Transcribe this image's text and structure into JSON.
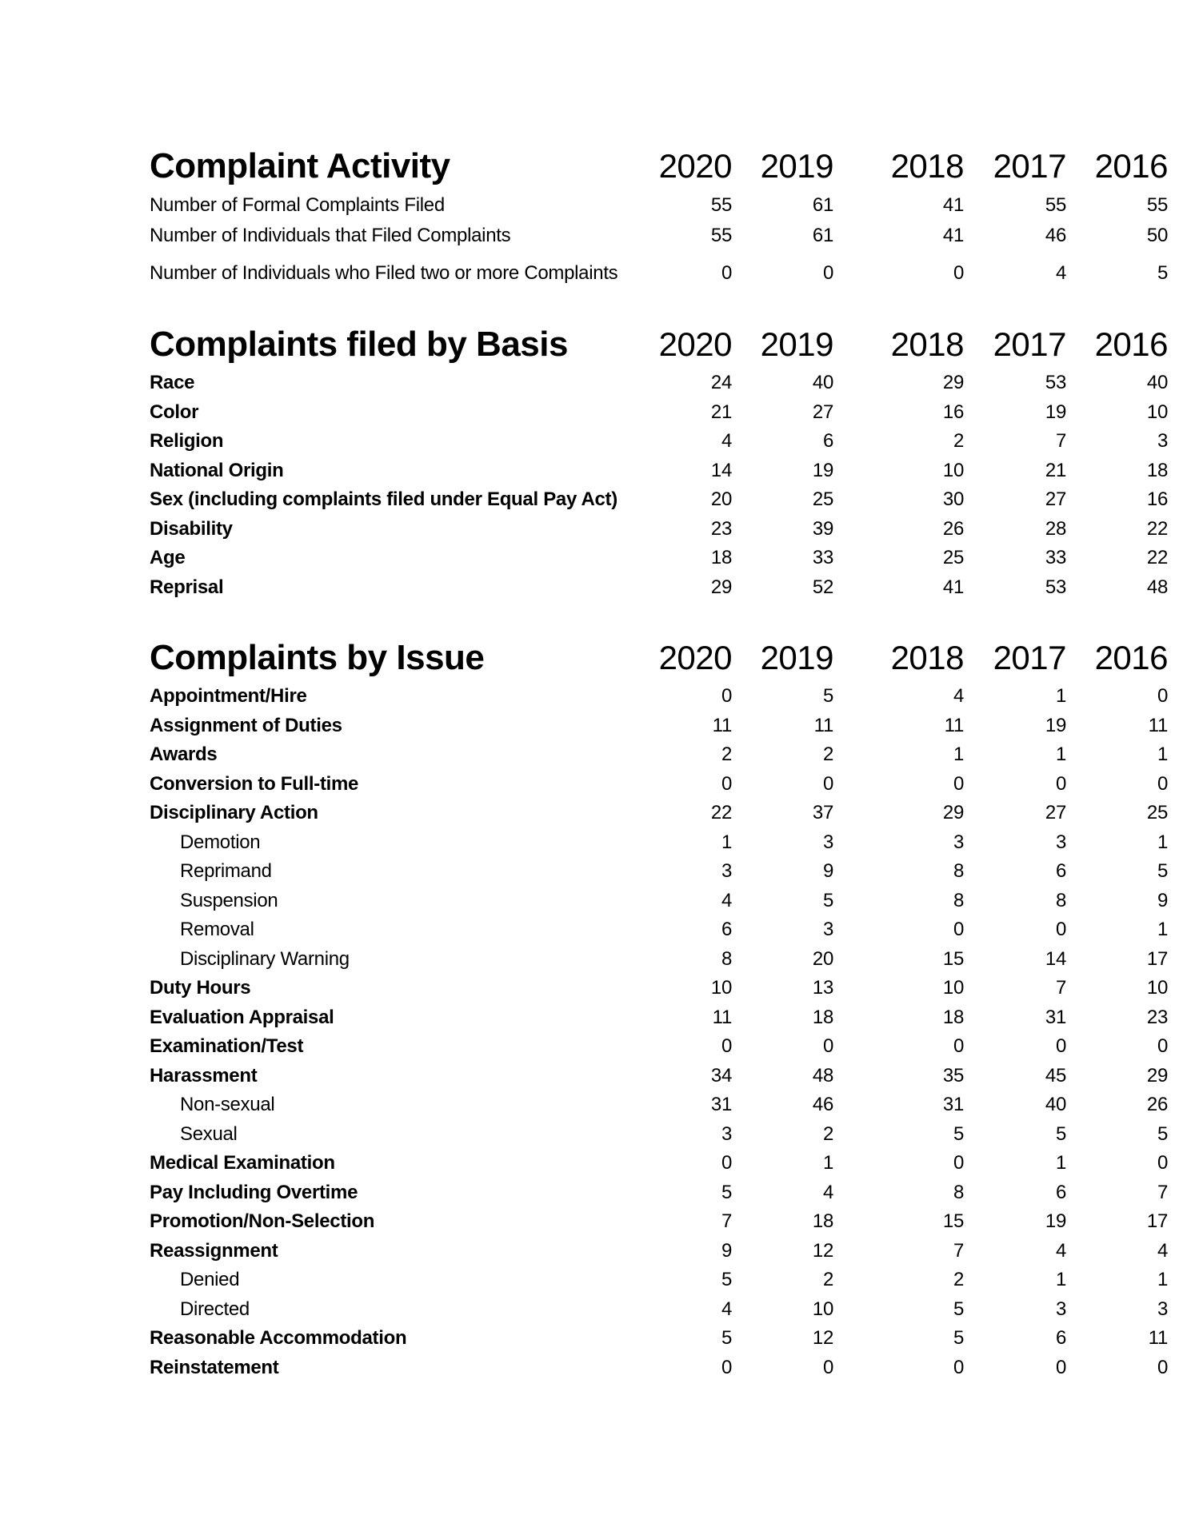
{
  "page": {
    "background_color": "#ffffff",
    "text_color": "#000000"
  },
  "years": [
    "2020",
    "2019",
    "2018",
    "2017",
    "2016"
  ],
  "sections": [
    {
      "id": "complaint-activity",
      "title": "Complaint Activity",
      "rows": [
        {
          "label": "Number of Formal Complaints Filed",
          "bold": false,
          "indent": false,
          "values": [
            55,
            61,
            41,
            55,
            55
          ]
        },
        {
          "label": "Number of Individuals that Filed Complaints",
          "bold": false,
          "indent": false,
          "values": [
            55,
            61,
            41,
            46,
            50
          ]
        },
        {
          "label": "Number of Individuals who Filed two or more Complaints",
          "bold": false,
          "indent": false,
          "spacer_before": true,
          "values": [
            0,
            0,
            0,
            4,
            5
          ]
        }
      ]
    },
    {
      "id": "complaints-filed-by-basis",
      "title": "Complaints filed by Basis",
      "rows": [
        {
          "label": "Race",
          "bold": true,
          "indent": false,
          "values": [
            24,
            40,
            29,
            53,
            40
          ]
        },
        {
          "label": "Color",
          "bold": true,
          "indent": false,
          "values": [
            21,
            27,
            16,
            19,
            10
          ]
        },
        {
          "label": "Religion",
          "bold": true,
          "indent": false,
          "values": [
            4,
            6,
            2,
            7,
            3
          ]
        },
        {
          "label": "National Origin",
          "bold": true,
          "indent": false,
          "values": [
            14,
            19,
            10,
            21,
            18
          ]
        },
        {
          "label": "Sex (including complaints filed under Equal Pay Act)",
          "bold": true,
          "indent": false,
          "values": [
            20,
            25,
            30,
            27,
            16
          ]
        },
        {
          "label": "Disability",
          "bold": true,
          "indent": false,
          "values": [
            23,
            39,
            26,
            28,
            22
          ]
        },
        {
          "label": "Age",
          "bold": true,
          "indent": false,
          "values": [
            18,
            33,
            25,
            33,
            22
          ]
        },
        {
          "label": "Reprisal",
          "bold": true,
          "indent": false,
          "values": [
            29,
            52,
            41,
            53,
            48
          ]
        }
      ]
    },
    {
      "id": "complaints-by-issue",
      "title": "Complaints by Issue",
      "rows": [
        {
          "label": "Appointment/Hire",
          "bold": true,
          "indent": false,
          "values": [
            0,
            5,
            4,
            1,
            0
          ]
        },
        {
          "label": "Assignment of Duties",
          "bold": true,
          "indent": false,
          "values": [
            11,
            11,
            11,
            19,
            11
          ]
        },
        {
          "label": "Awards",
          "bold": true,
          "indent": false,
          "values": [
            2,
            2,
            1,
            1,
            1
          ]
        },
        {
          "label": "Conversion to Full-time",
          "bold": true,
          "indent": false,
          "values": [
            0,
            0,
            0,
            0,
            0
          ]
        },
        {
          "label": "Disciplinary Action",
          "bold": true,
          "indent": false,
          "values": [
            22,
            37,
            29,
            27,
            25
          ]
        },
        {
          "label": "Demotion",
          "bold": false,
          "indent": true,
          "values": [
            1,
            3,
            3,
            3,
            1
          ]
        },
        {
          "label": "Reprimand",
          "bold": false,
          "indent": true,
          "values": [
            3,
            9,
            8,
            6,
            5
          ]
        },
        {
          "label": "Suspension",
          "bold": false,
          "indent": true,
          "values": [
            4,
            5,
            8,
            8,
            9
          ]
        },
        {
          "label": "Removal",
          "bold": false,
          "indent": true,
          "values": [
            6,
            3,
            0,
            0,
            1
          ]
        },
        {
          "label": "Disciplinary Warning",
          "bold": false,
          "indent": true,
          "values": [
            8,
            20,
            15,
            14,
            17
          ]
        },
        {
          "label": "Duty Hours",
          "bold": true,
          "indent": false,
          "values": [
            10,
            13,
            10,
            7,
            10
          ]
        },
        {
          "label": "Evaluation Appraisal",
          "bold": true,
          "indent": false,
          "values": [
            11,
            18,
            18,
            31,
            23
          ]
        },
        {
          "label": "Examination/Test",
          "bold": true,
          "indent": false,
          "values": [
            0,
            0,
            0,
            0,
            0
          ]
        },
        {
          "label": "Harassment",
          "bold": true,
          "indent": false,
          "values": [
            34,
            48,
            35,
            45,
            29
          ]
        },
        {
          "label": "Non-sexual",
          "bold": false,
          "indent": true,
          "values": [
            31,
            46,
            31,
            40,
            26
          ]
        },
        {
          "label": "Sexual",
          "bold": false,
          "indent": true,
          "values": [
            3,
            2,
            5,
            5,
            5
          ]
        },
        {
          "label": "Medical Examination",
          "bold": true,
          "indent": false,
          "values": [
            0,
            1,
            0,
            1,
            0
          ]
        },
        {
          "label": "Pay Including Overtime",
          "bold": true,
          "indent": false,
          "values": [
            5,
            4,
            8,
            6,
            7
          ]
        },
        {
          "label": "Promotion/Non-Selection",
          "bold": true,
          "indent": false,
          "values": [
            7,
            18,
            15,
            19,
            17
          ]
        },
        {
          "label": "Reassignment",
          "bold": true,
          "indent": false,
          "values": [
            9,
            12,
            7,
            4,
            4
          ]
        },
        {
          "label": "Denied",
          "bold": false,
          "indent": true,
          "values": [
            5,
            2,
            2,
            1,
            1
          ]
        },
        {
          "label": "Directed",
          "bold": false,
          "indent": true,
          "values": [
            4,
            10,
            5,
            3,
            3
          ]
        },
        {
          "label": "Reasonable Accommodation",
          "bold": true,
          "indent": false,
          "values": [
            5,
            12,
            5,
            6,
            11
          ]
        },
        {
          "label": "Reinstatement",
          "bold": true,
          "indent": false,
          "values": [
            0,
            0,
            0,
            0,
            0
          ]
        }
      ]
    }
  ]
}
